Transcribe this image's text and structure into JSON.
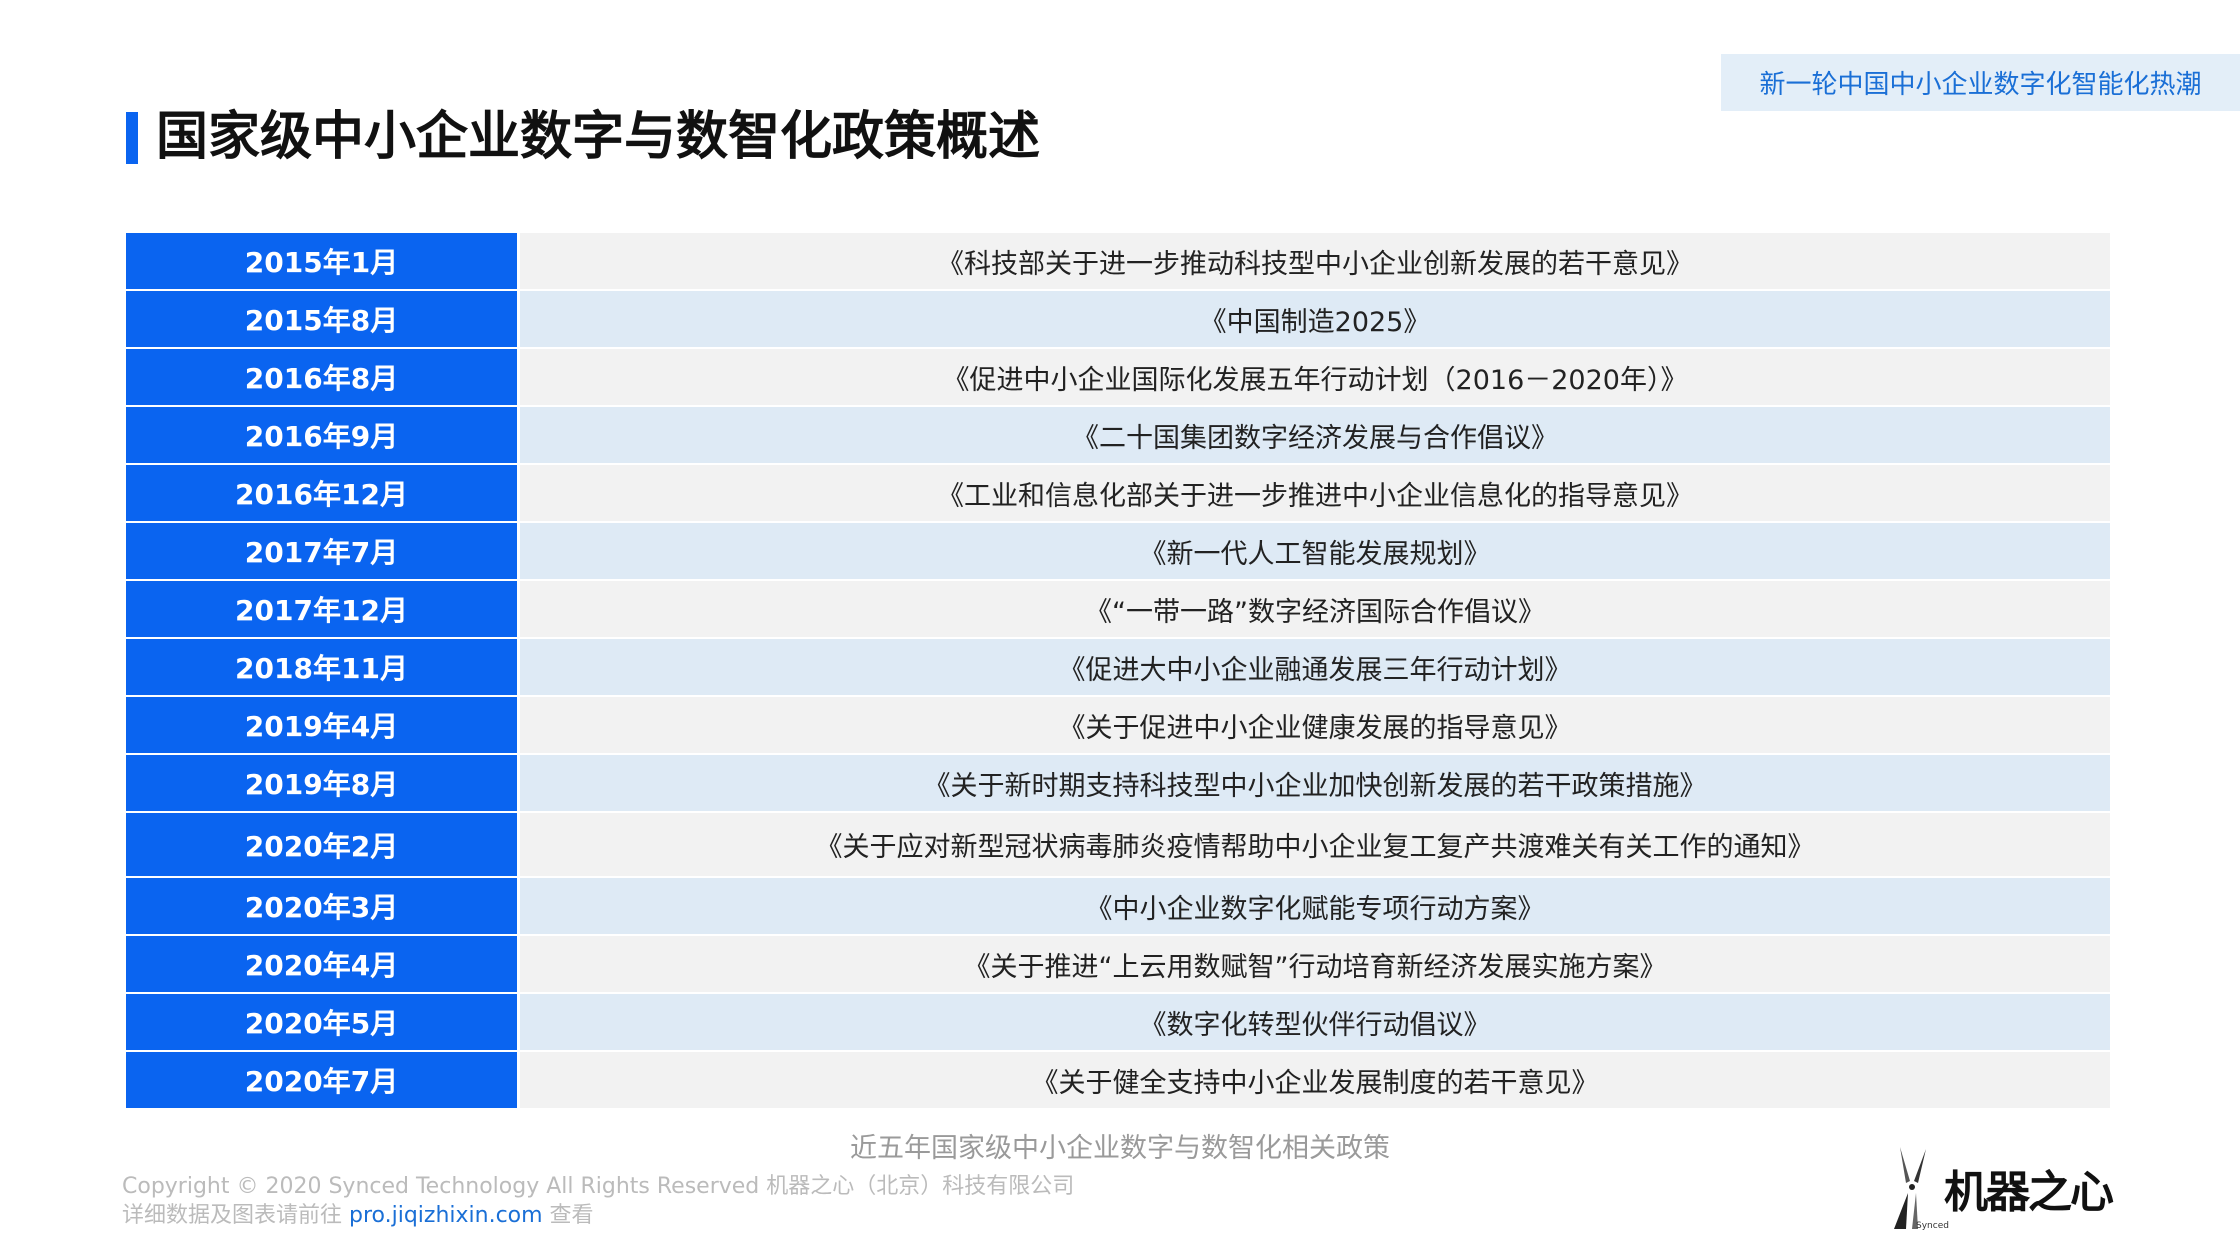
{
  "header": {
    "badge": "新一轮中国中小企业数字化智能化热潮",
    "title": "国家级中小企业数字与数智化政策概述"
  },
  "table": {
    "rows": [
      {
        "date": "2015年1月",
        "policy": "《科技部关于进一步推动科技型中小企业创新发展的若干意见》"
      },
      {
        "date": "2015年8月",
        "policy": "《中国制造2025》"
      },
      {
        "date": "2016年8月",
        "policy": "《促进中小企业国际化发展五年行动计划（2016－2020年）》"
      },
      {
        "date": "2016年9月",
        "policy": "《二十国集团数字经济发展与合作倡议》"
      },
      {
        "date": "2016年12月",
        "policy": "《工业和信息化部关于进一步推进中小企业信息化的指导意见》"
      },
      {
        "date": "2017年7月",
        "policy": "《新一代人工智能发展规划》"
      },
      {
        "date": "2017年12月",
        "policy": "《“一带一路”数字经济国际合作倡议》"
      },
      {
        "date": "2018年11月",
        "policy": "《促进大中小企业融通发展三年行动计划》"
      },
      {
        "date": "2019年4月",
        "policy": "《关于促进中小企业健康发展的指导意见》"
      },
      {
        "date": "2019年8月",
        "policy": "《关于新时期支持科技型中小企业加快创新发展的若干政策措施》"
      },
      {
        "date": "2020年2月",
        "policy": "《关于应对新型冠状病毒肺炎疫情帮助中小企业复工复产共渡难关有关工作的通知》"
      },
      {
        "date": "2020年3月",
        "policy": "《中小企业数字化赋能专项行动方案》"
      },
      {
        "date": "2020年4月",
        "policy": "《关于推进“上云用数赋智”行动培育新经济发展实施方案》"
      },
      {
        "date": "2020年5月",
        "policy": "《数字化转型伙伴行动倡议》"
      },
      {
        "date": "2020年7月",
        "policy": "《关于健全支持中小企业发展制度的若干意见》"
      }
    ]
  },
  "caption": "近五年国家级中小企业数字与数智化相关政策",
  "footer": {
    "copyright": "Copyright © 2020 Synced Technology All Rights Reserved  机器之心（北京）科技有限公司",
    "details_prefix": "详细数据及图表请前往 ",
    "link": "pro.jiqizhixin.com",
    "details_suffix": " 查看"
  },
  "logo": {
    "text": "机器之心",
    "sub": "Synced"
  },
  "colors": {
    "accent": "#0a64f0",
    "row_light": "#f2f2f2",
    "row_blue": "#deeaf5",
    "badge_bg": "#e3eef8",
    "link": "#1a6fd6"
  }
}
